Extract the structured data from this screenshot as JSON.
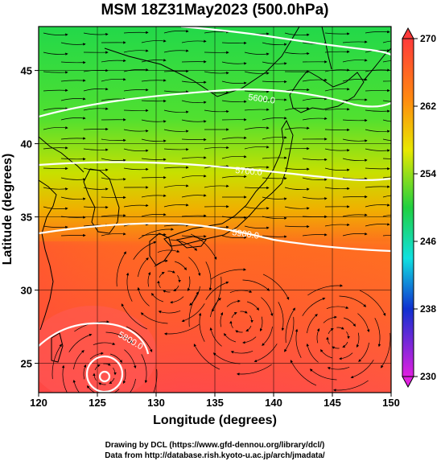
{
  "title": "MSM 18Z31May2023 (500.0hPa)",
  "xlabel": "Longitude (degrees)",
  "ylabel": "Latitude  (degrees)",
  "x_ticks": [
    "120",
    "125",
    "130",
    "135",
    "140",
    "145",
    "150"
  ],
  "y_ticks": [
    "25",
    "30",
    "35",
    "40",
    "45"
  ],
  "colorbar_ticks": [
    "230",
    "238",
    "246",
    "254",
    "262",
    "270"
  ],
  "contour_labels": [
    "5600.0",
    "5700.0",
    "5800.0",
    "5900.0"
  ],
  "footer": {
    "line1": "Drawing by DCL (https://www.gfd-dennou.org/library/dcl/)",
    "line2": "Data from http://database.rish.kyoto-u.ac.jp/arch/jmadata/"
  },
  "map": {
    "lon_range": [
      120,
      150
    ],
    "lat_range": [
      23,
      48
    ],
    "colorbar_range": [
      230,
      270
    ],
    "contours": [
      {
        "label": "5600.0",
        "lat_west": 42.3,
        "lat_east": 43.6
      },
      {
        "label": "5700.0",
        "lat_west": 38.9,
        "lat_east": 37.9
      },
      {
        "label": "5800.0",
        "lat_west": 34.0,
        "lat_east": 33.0
      },
      {
        "label": "5900.0",
        "center": [
          125.7,
          23.7
        ],
        "closed": true
      }
    ]
  },
  "colors": {
    "cb_top": "#ff3a3a",
    "cb_orange": "#ff8a10",
    "cb_yellow": "#e8e800",
    "cb_green": "#20d040",
    "cb_cyan": "#10e0e0",
    "cb_blue": "#1030d0",
    "cb_bottom": "#e020e0",
    "contour": "#ffffff"
  }
}
